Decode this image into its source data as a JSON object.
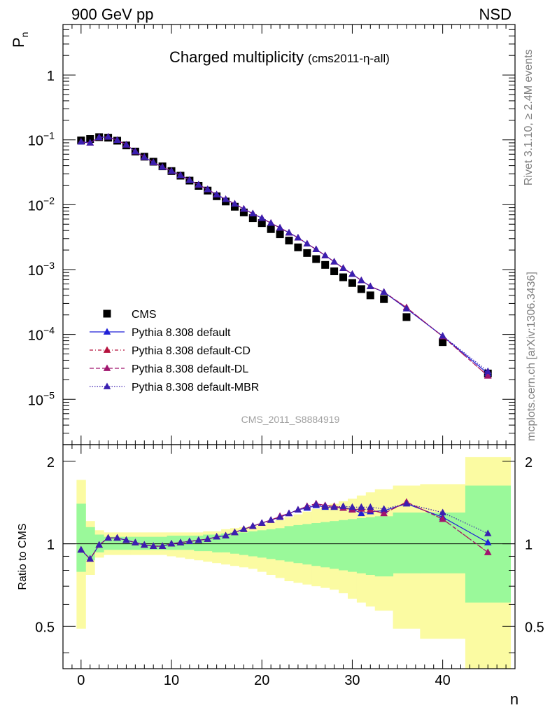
{
  "header": {
    "left": "900 GeV pp",
    "right": "NSD"
  },
  "side_text": {
    "rivet": "Rivet 3.1.10, ≥ 2.4M events",
    "mcplots": "mcplots.cern.ch [arXiv:1306.3436]"
  },
  "chart_data": [
    {
      "type": "scatter",
      "panel": "main",
      "title": "Charged multiplicity",
      "subtitle": "(cms2011-η-all)",
      "ylabel_main": "P",
      "ylabel_sub": "n",
      "yscale": "log",
      "ylim": [
        2e-06,
        6
      ],
      "xlim": [
        -2,
        48
      ],
      "yticks": [
        1e-05,
        0.0001,
        0.001,
        0.01,
        0.1,
        1
      ],
      "ytick_labels": [
        {
          "base": "10",
          "exp": "−5"
        },
        {
          "base": "10",
          "exp": "−4"
        },
        {
          "base": "10",
          "exp": "−3"
        },
        {
          "base": "10",
          "exp": "−2"
        },
        {
          "base": "10",
          "exp": "−1"
        },
        {
          "base": "1",
          "exp": ""
        }
      ],
      "analysis_tag": "CMS_2011_S8884919",
      "legend_position": "bottom-left",
      "series": [
        {
          "name": "CMS",
          "color": "#000000",
          "marker": "square",
          "x": [
            0,
            1,
            2,
            3,
            4,
            5,
            6,
            7,
            8,
            9,
            10,
            11,
            12,
            13,
            14,
            15,
            16,
            17,
            18,
            19,
            20,
            21,
            22,
            23,
            24,
            25,
            26,
            27,
            28,
            29,
            30,
            31,
            32,
            33.5,
            36,
            40,
            45
          ],
          "y": [
            0.098,
            0.103,
            0.11,
            0.108,
            0.097,
            0.082,
            0.066,
            0.055,
            0.046,
            0.039,
            0.033,
            0.028,
            0.0235,
            0.0195,
            0.0165,
            0.0135,
            0.0112,
            0.0093,
            0.0076,
            0.0062,
            0.0052,
            0.0042,
            0.0035,
            0.0028,
            0.0022,
            0.0018,
            0.00145,
            0.00118,
            0.00094,
            0.00076,
            0.00062,
            0.0005,
            0.0004,
            0.00035,
            0.000185,
            7.6e-05,
            2.5e-05
          ]
        },
        {
          "name": "Pythia 8.308 default",
          "color": "#1f1fd6",
          "marker": "triangle",
          "line": "solid",
          "x": [
            0,
            1,
            2,
            3,
            4,
            5,
            6,
            7,
            8,
            9,
            10,
            11,
            12,
            13,
            14,
            15,
            16,
            17,
            18,
            19,
            20,
            21,
            22,
            23,
            24,
            25,
            26,
            27,
            28,
            29,
            30,
            31,
            32,
            33.5,
            36,
            40,
            45
          ],
          "y": [
            0.093,
            0.09,
            0.109,
            0.111,
            0.099,
            0.084,
            0.066,
            0.054,
            0.045,
            0.038,
            0.033,
            0.0285,
            0.024,
            0.0203,
            0.0172,
            0.0143,
            0.0121,
            0.0103,
            0.0086,
            0.0073,
            0.0062,
            0.0052,
            0.0044,
            0.0037,
            0.0031,
            0.0025,
            0.00205,
            0.00165,
            0.00132,
            0.00105,
            0.00085,
            0.00068,
            0.00055,
            0.00045,
            0.00025,
            9.4e-05,
            2.5e-05
          ]
        },
        {
          "name": "Pythia 8.308 default-CD",
          "color": "#b5103c",
          "marker": "triangle",
          "line": "dashdot",
          "x": [
            0,
            1,
            2,
            3,
            4,
            5,
            6,
            7,
            8,
            9,
            10,
            11,
            12,
            13,
            14,
            15,
            16,
            17,
            18,
            19,
            20,
            21,
            22,
            23,
            24,
            25,
            26,
            27,
            28,
            29,
            30,
            31,
            32,
            33.5,
            36,
            40,
            45
          ],
          "y": [
            0.093,
            0.09,
            0.109,
            0.111,
            0.099,
            0.084,
            0.066,
            0.054,
            0.045,
            0.038,
            0.033,
            0.0285,
            0.024,
            0.0203,
            0.0172,
            0.0143,
            0.0121,
            0.0103,
            0.0086,
            0.0073,
            0.0062,
            0.0052,
            0.0044,
            0.0037,
            0.0031,
            0.0025,
            0.00205,
            0.00165,
            0.00132,
            0.00105,
            0.00085,
            0.00068,
            0.00055,
            0.00045,
            0.00026,
            9.3e-05,
            2.3e-05
          ]
        },
        {
          "name": "Pythia 8.308 default-DL",
          "color": "#a0156e",
          "marker": "triangle",
          "line": "dashed",
          "x": [
            0,
            1,
            2,
            3,
            4,
            5,
            6,
            7,
            8,
            9,
            10,
            11,
            12,
            13,
            14,
            15,
            16,
            17,
            18,
            19,
            20,
            21,
            22,
            23,
            24,
            25,
            26,
            27,
            28,
            29,
            30,
            31,
            32,
            33.5,
            36,
            40,
            45
          ],
          "y": [
            0.093,
            0.09,
            0.109,
            0.111,
            0.099,
            0.084,
            0.066,
            0.054,
            0.045,
            0.038,
            0.033,
            0.0285,
            0.024,
            0.0203,
            0.0172,
            0.0143,
            0.0121,
            0.0103,
            0.0086,
            0.0073,
            0.0062,
            0.0052,
            0.0044,
            0.0037,
            0.0031,
            0.0025,
            0.00205,
            0.00165,
            0.00132,
            0.00105,
            0.00085,
            0.00068,
            0.00055,
            0.00045,
            0.00026,
            9.3e-05,
            2.3e-05
          ]
        },
        {
          "name": "Pythia 8.308 default-MBR",
          "color": "#3a1fb0",
          "marker": "triangle",
          "line": "dotted",
          "x": [
            0,
            1,
            2,
            3,
            4,
            5,
            6,
            7,
            8,
            9,
            10,
            11,
            12,
            13,
            14,
            15,
            16,
            17,
            18,
            19,
            20,
            21,
            22,
            23,
            24,
            25,
            26,
            27,
            28,
            29,
            30,
            31,
            32,
            33.5,
            36,
            40,
            45
          ],
          "y": [
            0.093,
            0.09,
            0.109,
            0.111,
            0.099,
            0.084,
            0.066,
            0.054,
            0.045,
            0.038,
            0.033,
            0.0285,
            0.024,
            0.0203,
            0.0172,
            0.0143,
            0.0121,
            0.0103,
            0.0086,
            0.0073,
            0.0062,
            0.0052,
            0.0044,
            0.0037,
            0.0031,
            0.0025,
            0.00205,
            0.00165,
            0.00132,
            0.00105,
            0.00085,
            0.00068,
            0.00055,
            0.00045,
            0.00025,
            9.5e-05,
            2.7e-05
          ]
        }
      ]
    },
    {
      "type": "line",
      "panel": "ratio",
      "ylabel": "Ratio to CMS",
      "xlabel": "n",
      "yscale": "log",
      "ylim": [
        0.35,
        2.3
      ],
      "xlim": [
        -2,
        48
      ],
      "yticks": [
        0.5,
        1,
        2
      ],
      "ytick_labels": [
        "0.5",
        "1",
        "2"
      ],
      "xticks": [
        0,
        10,
        20,
        30,
        40
      ],
      "xtick_labels": [
        "0",
        "10",
        "20",
        "30",
        "40"
      ],
      "reference_line": 1,
      "bands": {
        "edges": [
          -0.5,
          0.5,
          1.5,
          2.5,
          3.5,
          4.5,
          5.5,
          6.5,
          7.5,
          8.5,
          9.5,
          10.5,
          11.5,
          12.5,
          13.5,
          14.5,
          15.5,
          16.5,
          17.5,
          18.5,
          19.5,
          20.5,
          21.5,
          22.5,
          23.5,
          24.5,
          25.5,
          26.5,
          27.5,
          28.5,
          29.5,
          30.5,
          31.5,
          32.5,
          34.5,
          37.5,
          42.5,
          47.5
        ],
        "stat_low": [
          0.79,
          0.87,
          0.93,
          0.95,
          0.95,
          0.95,
          0.95,
          0.95,
          0.95,
          0.95,
          0.95,
          0.95,
          0.95,
          0.94,
          0.94,
          0.93,
          0.93,
          0.92,
          0.91,
          0.9,
          0.89,
          0.88,
          0.87,
          0.86,
          0.85,
          0.84,
          0.83,
          0.82,
          0.81,
          0.8,
          0.79,
          0.78,
          0.77,
          0.76,
          0.78,
          0.78,
          0.61
        ],
        "stat_high": [
          1.4,
          1.15,
          1.08,
          1.06,
          1.06,
          1.06,
          1.06,
          1.06,
          1.06,
          1.06,
          1.07,
          1.07,
          1.07,
          1.07,
          1.08,
          1.08,
          1.09,
          1.1,
          1.1,
          1.11,
          1.12,
          1.13,
          1.14,
          1.16,
          1.17,
          1.18,
          1.19,
          1.2,
          1.21,
          1.22,
          1.23,
          1.24,
          1.25,
          1.26,
          1.3,
          1.3,
          1.63
        ],
        "tot_low": [
          0.49,
          0.77,
          0.89,
          0.91,
          0.91,
          0.91,
          0.91,
          0.91,
          0.91,
          0.91,
          0.9,
          0.89,
          0.88,
          0.87,
          0.86,
          0.85,
          0.84,
          0.83,
          0.82,
          0.81,
          0.79,
          0.77,
          0.75,
          0.73,
          0.72,
          0.71,
          0.7,
          0.69,
          0.68,
          0.66,
          0.63,
          0.61,
          0.59,
          0.57,
          0.49,
          0.45,
          0.3
        ],
        "tot_high": [
          1.71,
          1.21,
          1.12,
          1.1,
          1.1,
          1.1,
          1.1,
          1.1,
          1.1,
          1.1,
          1.1,
          1.1,
          1.1,
          1.1,
          1.11,
          1.11,
          1.13,
          1.14,
          1.15,
          1.16,
          1.18,
          1.2,
          1.22,
          1.25,
          1.28,
          1.31,
          1.34,
          1.37,
          1.4,
          1.43,
          1.46,
          1.5,
          1.54,
          1.58,
          1.63,
          1.65,
          2.07
        ]
      },
      "series": [
        {
          "name": "Pythia 8.308 default",
          "color": "#1f1fd6",
          "line": "solid",
          "x": [
            0,
            1,
            2,
            3,
            4,
            5,
            6,
            7,
            8,
            9,
            10,
            11,
            12,
            13,
            14,
            15,
            16,
            17,
            18,
            19,
            20,
            21,
            22,
            23,
            24,
            25,
            26,
            27,
            28,
            29,
            30,
            31,
            32,
            33.5,
            36,
            40,
            45
          ],
          "y": [
            0.95,
            0.88,
            0.99,
            1.05,
            1.05,
            1.03,
            1.01,
            0.99,
            0.98,
            0.98,
            1.0,
            1.01,
            1.02,
            1.03,
            1.04,
            1.06,
            1.07,
            1.1,
            1.13,
            1.16,
            1.19,
            1.22,
            1.25,
            1.29,
            1.33,
            1.35,
            1.38,
            1.36,
            1.36,
            1.35,
            1.34,
            1.29,
            1.31,
            1.32,
            1.4,
            1.25,
            1.01
          ]
        },
        {
          "name": "Pythia 8.308 default-CD",
          "color": "#b5103c",
          "line": "dashdot",
          "x": [
            0,
            1,
            2,
            3,
            4,
            5,
            6,
            7,
            8,
            9,
            10,
            11,
            12,
            13,
            14,
            15,
            16,
            17,
            18,
            19,
            20,
            21,
            22,
            23,
            24,
            25,
            26,
            27,
            28,
            29,
            30,
            31,
            32,
            33.5,
            36,
            40,
            45
          ],
          "y": [
            0.95,
            0.88,
            0.99,
            1.05,
            1.05,
            1.03,
            1.01,
            0.99,
            0.98,
            0.98,
            1.0,
            1.01,
            1.02,
            1.03,
            1.04,
            1.06,
            1.07,
            1.1,
            1.13,
            1.16,
            1.19,
            1.22,
            1.26,
            1.29,
            1.33,
            1.37,
            1.4,
            1.38,
            1.37,
            1.35,
            1.33,
            1.34,
            1.33,
            1.29,
            1.42,
            1.23,
            0.93
          ]
        },
        {
          "name": "Pythia 8.308 default-DL",
          "color": "#a0156e",
          "line": "dashed",
          "x": [
            0,
            1,
            2,
            3,
            4,
            5,
            6,
            7,
            8,
            9,
            10,
            11,
            12,
            13,
            14,
            15,
            16,
            17,
            18,
            19,
            20,
            21,
            22,
            23,
            24,
            25,
            26,
            27,
            28,
            29,
            30,
            31,
            32,
            33.5,
            36,
            40,
            45
          ],
          "y": [
            0.95,
            0.88,
            0.99,
            1.05,
            1.05,
            1.03,
            1.01,
            0.99,
            0.98,
            0.98,
            1.0,
            1.01,
            1.02,
            1.03,
            1.04,
            1.06,
            1.07,
            1.1,
            1.13,
            1.16,
            1.19,
            1.22,
            1.26,
            1.29,
            1.33,
            1.37,
            1.4,
            1.38,
            1.37,
            1.35,
            1.33,
            1.34,
            1.33,
            1.29,
            1.42,
            1.23,
            0.93
          ]
        },
        {
          "name": "Pythia 8.308 default-MBR",
          "color": "#3a1fb0",
          "line": "dotted",
          "x": [
            0,
            1,
            2,
            3,
            4,
            5,
            6,
            7,
            8,
            9,
            10,
            11,
            12,
            13,
            14,
            15,
            16,
            17,
            18,
            19,
            20,
            21,
            22,
            23,
            24,
            25,
            26,
            27,
            28,
            29,
            30,
            31,
            32,
            33.5,
            36,
            40,
            45
          ],
          "y": [
            0.95,
            0.88,
            0.99,
            1.05,
            1.05,
            1.03,
            1.01,
            0.99,
            0.98,
            0.98,
            1.0,
            1.01,
            1.02,
            1.03,
            1.04,
            1.06,
            1.07,
            1.1,
            1.13,
            1.16,
            1.19,
            1.22,
            1.25,
            1.29,
            1.33,
            1.36,
            1.39,
            1.37,
            1.36,
            1.37,
            1.36,
            1.36,
            1.36,
            1.34,
            1.4,
            1.3,
            1.09
          ]
        }
      ]
    }
  ]
}
